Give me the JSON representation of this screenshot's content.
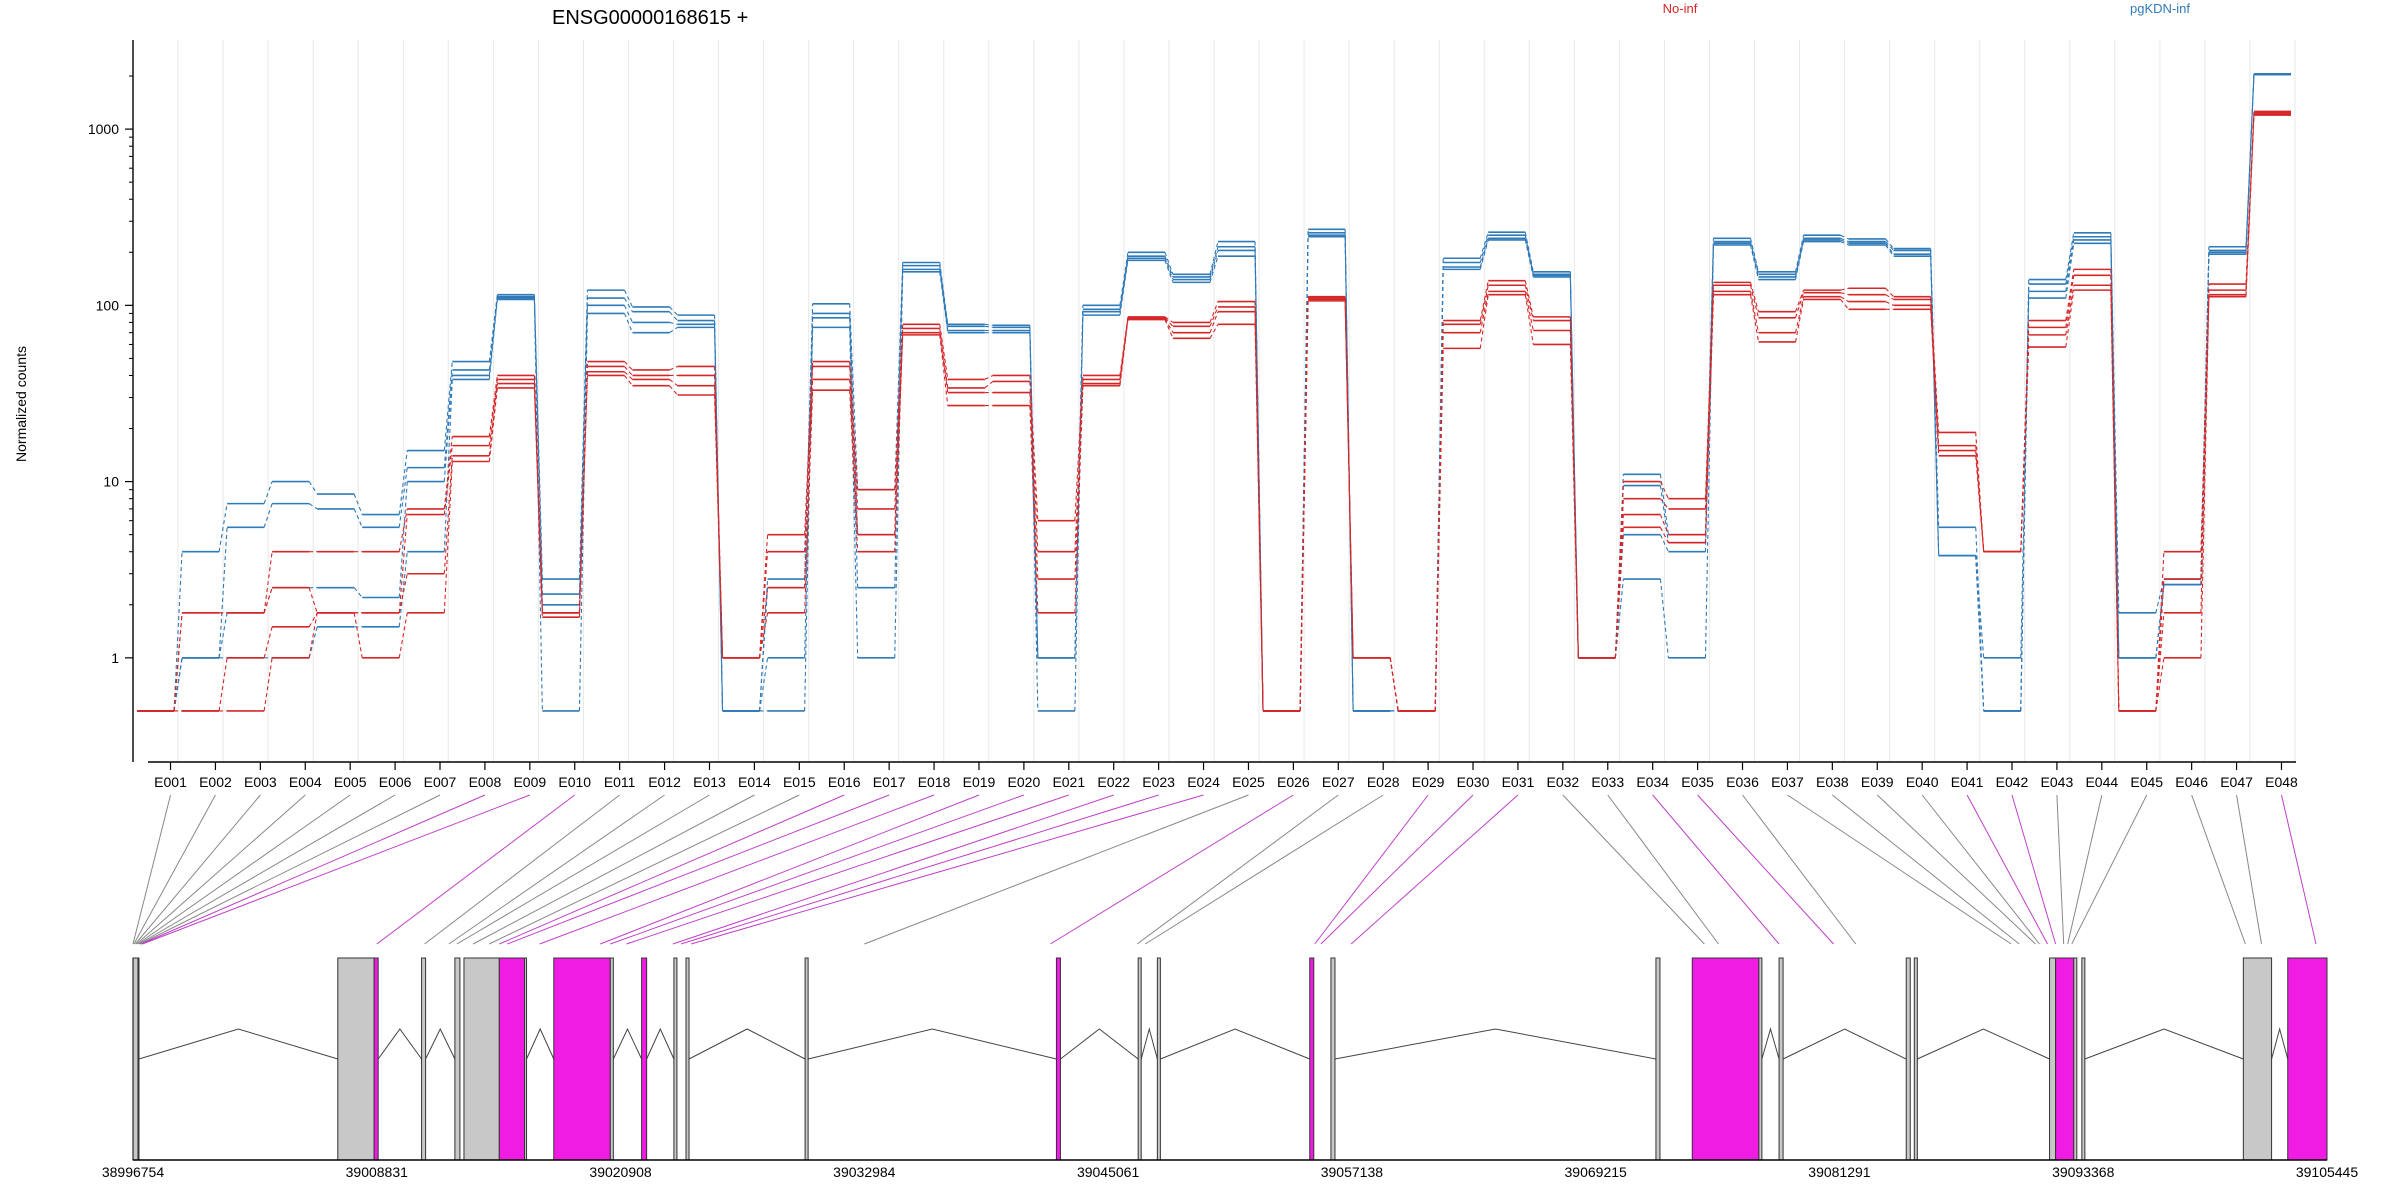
{
  "colors": {
    "no_inf": "#d62728",
    "pgkdn_inf": "#2f7ab8",
    "exon_spliced": "#f01ce4",
    "exon_constitutive": "#c8c8c8",
    "connector_gray": "#888888",
    "connector_magenta": "#c040c8"
  },
  "chart_data": {
    "type": "line",
    "title": "ENSG00000168615 +",
    "ylabel": "Normalized counts",
    "xlabel": "",
    "y_scale": "log",
    "ylim": [
      0.3,
      3000
    ],
    "y_ticks": [
      "1",
      "10",
      "100",
      "1000"
    ],
    "grid": "vertical-minor",
    "legend_placement": "top-right",
    "categories": [
      "E001",
      "E002",
      "E003",
      "E004",
      "E005",
      "E006",
      "E007",
      "E008",
      "E009",
      "E010",
      "E011",
      "E012",
      "E013",
      "E014",
      "E015",
      "E016",
      "E017",
      "E018",
      "E019",
      "E020",
      "E021",
      "E022",
      "E023",
      "E024",
      "E025",
      "E026",
      "E027",
      "E028",
      "E029",
      "E030",
      "E031",
      "E032",
      "E033",
      "E034",
      "E035",
      "E036",
      "E037",
      "E038",
      "E039",
      "E040",
      "E041",
      "E042",
      "E043",
      "E044",
      "E045",
      "E046",
      "E047",
      "E048"
    ],
    "series": [
      {
        "name": "pgKDN-inf",
        "values": [
          0.5,
          4,
          7.5,
          10,
          8.5,
          6.5,
          15,
          48,
          115,
          2.8,
          122,
          98,
          88,
          0.5,
          2.8,
          102,
          9,
          175,
          78,
          77,
          1,
          100,
          200,
          150,
          230,
          0.5,
          270,
          0.5,
          0.5,
          185,
          260,
          155,
          1,
          11,
          5,
          240,
          155,
          250,
          238,
          210,
          5.5,
          0.5,
          140,
          258,
          1.8,
          2.8,
          215,
          2050
        ]
      },
      {
        "name": "pgKDN-inf",
        "values": [
          0.5,
          1,
          5.5,
          7.5,
          7,
          5.5,
          12,
          43,
          112,
          2.3,
          110,
          92,
          82,
          0.5,
          2.5,
          90,
          5,
          168,
          76,
          75,
          1,
          95,
          190,
          145,
          215,
          0.5,
          258,
          0.5,
          0.5,
          175,
          250,
          150,
          1,
          9.5,
          4.5,
          230,
          150,
          240,
          230,
          205,
          3.8,
          0.5,
          132,
          245,
          1,
          2.6,
          205,
          2040
        ]
      },
      {
        "name": "pgKDN-inf",
        "values": [
          0.5,
          1,
          1.8,
          2.5,
          2.5,
          2.2,
          10,
          40,
          110,
          2,
          100,
          80,
          78,
          0.5,
          1,
          85,
          2.5,
          160,
          72,
          72,
          1,
          92,
          185,
          140,
          205,
          0.5,
          250,
          0.5,
          0.5,
          165,
          240,
          148,
          1,
          5,
          4,
          225,
          145,
          235,
          225,
          195,
          3.8,
          1,
          120,
          235,
          1,
          2.6,
          200,
          2060
        ]
      },
      {
        "name": "pgKDN-inf",
        "values": [
          0.5,
          1,
          1,
          1,
          1.5,
          1.5,
          4,
          38,
          108,
          0.5,
          90,
          70,
          75,
          0.5,
          0.5,
          75,
          1,
          155,
          70,
          70,
          0.5,
          88,
          180,
          135,
          190,
          0.5,
          245,
          0.5,
          0.5,
          160,
          235,
          145,
          1,
          2.8,
          1,
          220,
          140,
          230,
          220,
          190,
          3.8,
          0.5,
          110,
          225,
          1,
          2.6,
          195,
          2040
        ]
      },
      {
        "name": "No-inf",
        "values": [
          0.5,
          1.8,
          1.8,
          4,
          4,
          4,
          7,
          18,
          40,
          1.8,
          48,
          43,
          45,
          1,
          5,
          48,
          9,
          78,
          38,
          40,
          6,
          40,
          86,
          80,
          105,
          0.5,
          112,
          1,
          0.5,
          82,
          138,
          86,
          1,
          10,
          8,
          135,
          92,
          122,
          125,
          112,
          19,
          4,
          82,
          160,
          0.5,
          4,
          132,
          1260
        ]
      },
      {
        "name": "No-inf",
        "values": [
          0.5,
          1.8,
          1.8,
          2.5,
          1.8,
          1.8,
          6.5,
          16,
          38,
          1.8,
          45,
          40,
          40,
          1,
          4,
          45,
          7,
          74,
          34,
          37,
          4,
          38,
          85,
          76,
          98,
          0.5,
          110,
          1,
          0.5,
          78,
          130,
          82,
          1,
          8,
          7,
          130,
          85,
          118,
          115,
          108,
          16,
          4,
          75,
          148,
          0.5,
          2.8,
          122,
          1240
        ]
      },
      {
        "name": "No-inf",
        "values": [
          0.5,
          0.5,
          1,
          1.5,
          1.8,
          1.8,
          3,
          14,
          36,
          1.8,
          42,
          38,
          35,
          1,
          2.5,
          38,
          5,
          70,
          32,
          32,
          2.8,
          36,
          84,
          70,
          92,
          0.5,
          108,
          1,
          0.5,
          70,
          120,
          72,
          1,
          6.5,
          5,
          120,
          70,
          112,
          105,
          100,
          15,
          4,
          68,
          130,
          0.5,
          1.8,
          115,
          1220
        ]
      },
      {
        "name": "No-inf",
        "values": [
          0.5,
          0.5,
          0.5,
          1,
          1.8,
          1,
          1.8,
          13,
          34,
          1.7,
          40,
          35,
          31,
          1,
          1.8,
          33,
          4,
          68,
          27,
          27,
          1.8,
          35,
          83,
          65,
          78,
          0.5,
          106,
          1,
          0.5,
          57,
          115,
          60,
          1,
          5.5,
          4.5,
          115,
          62,
          108,
          95,
          95,
          14,
          4,
          58,
          122,
          0.5,
          1,
          112,
          1200
        ]
      }
    ],
    "genomic_axis": {
      "min": 38996754,
      "max": 39105445,
      "tick_labels": [
        "38996754",
        "39008831",
        "39020908",
        "39032984",
        "39045061",
        "39057138",
        "39069215",
        "39081291",
        "39093368",
        "39105445"
      ]
    },
    "exon_positions": [
      38996754,
      38996800,
      38996870,
      38996930,
      38996990,
      38997050,
      38997100,
      38997160,
      38997220,
      39008831,
      39011200,
      39012400,
      39012800,
      39013600,
      39014400,
      39014900,
      39015300,
      39016900,
      39019900,
      39020400,
      39021200,
      39023500,
      39023900,
      39024400,
      39032984,
      39042200,
      39046500,
      39046900,
      39055300,
      39055600,
      39057100,
      39074600,
      39075300,
      39078300,
      39081000,
      39082100,
      39089800,
      39090200,
      39091000,
      39091200,
      39091600,
      39092000,
      39092400,
      39092600,
      39092800,
      39101400,
      39102200,
      39104900
    ],
    "exon_types": [
      "constitutive",
      "constitutive",
      "constitutive",
      "constitutive",
      "constitutive",
      "constitutive",
      "constitutive",
      "spliced",
      "spliced",
      "spliced",
      "constitutive",
      "constitutive",
      "constitutive",
      "constitutive",
      "constitutive",
      "spliced",
      "spliced",
      "spliced",
      "spliced",
      "spliced",
      "spliced",
      "spliced",
      "spliced",
      "spliced",
      "constitutive",
      "spliced",
      "constitutive",
      "constitutive",
      "spliced",
      "spliced",
      "spliced",
      "constitutive",
      "constitutive",
      "spliced",
      "spliced",
      "constitutive",
      "constitutive",
      "constitutive",
      "constitutive",
      "constitutive",
      "spliced",
      "spliced",
      "constitutive",
      "constitutive",
      "constitutive",
      "constitutive",
      "constitutive",
      "spliced"
    ],
    "gene_model": [
      {
        "start": 38996754,
        "end": 38997050,
        "type": "spliced"
      },
      {
        "start": 38996754,
        "end": 38997000,
        "type": "constitutive"
      },
      {
        "start": 39006900,
        "end": 39008700,
        "type": "constitutive"
      },
      {
        "start": 39008700,
        "end": 39008900,
        "type": "spliced"
      },
      {
        "start": 39011050,
        "end": 39011250,
        "type": "constitutive"
      },
      {
        "start": 39012700,
        "end": 39012950,
        "type": "constitutive"
      },
      {
        "start": 39013150,
        "end": 39014900,
        "type": "constitutive"
      },
      {
        "start": 39014900,
        "end": 39016150,
        "type": "spliced"
      },
      {
        "start": 39016150,
        "end": 39016250,
        "type": "constitutive"
      },
      {
        "start": 39017600,
        "end": 39020400,
        "type": "spliced"
      },
      {
        "start": 39020400,
        "end": 39020550,
        "type": "constitutive"
      },
      {
        "start": 39021950,
        "end": 39022200,
        "type": "spliced"
      },
      {
        "start": 39023550,
        "end": 39023700,
        "type": "constitutive"
      },
      {
        "start": 39024150,
        "end": 39024300,
        "type": "constitutive"
      },
      {
        "start": 39030050,
        "end": 39030200,
        "type": "constitutive"
      },
      {
        "start": 39042500,
        "end": 39042700,
        "type": "spliced"
      },
      {
        "start": 39046550,
        "end": 39046700,
        "type": "constitutive"
      },
      {
        "start": 39047500,
        "end": 39047650,
        "type": "constitutive"
      },
      {
        "start": 39055050,
        "end": 39055250,
        "type": "spliced"
      },
      {
        "start": 39056100,
        "end": 39056300,
        "type": "constitutive"
      },
      {
        "start": 39072200,
        "end": 39072400,
        "type": "constitutive"
      },
      {
        "start": 39074000,
        "end": 39077300,
        "type": "spliced"
      },
      {
        "start": 39077300,
        "end": 39077450,
        "type": "constitutive"
      },
      {
        "start": 39078300,
        "end": 39078500,
        "type": "constitutive"
      },
      {
        "start": 39084600,
        "end": 39084800,
        "type": "constitutive"
      },
      {
        "start": 39085000,
        "end": 39085150,
        "type": "constitutive"
      },
      {
        "start": 39091700,
        "end": 39092000,
        "type": "constitutive"
      },
      {
        "start": 39092000,
        "end": 39092900,
        "type": "spliced"
      },
      {
        "start": 39092900,
        "end": 39093050,
        "type": "constitutive"
      },
      {
        "start": 39093300,
        "end": 39093450,
        "type": "constitutive"
      },
      {
        "start": 39101300,
        "end": 39102700,
        "type": "constitutive"
      },
      {
        "start": 39103500,
        "end": 39105445,
        "type": "spliced"
      }
    ],
    "introns": [
      [
        38997050,
        39006900
      ],
      [
        39008900,
        39011050
      ],
      [
        39011250,
        39012700
      ],
      [
        39016250,
        39017600
      ],
      [
        39020550,
        39021950
      ],
      [
        39022200,
        39023550
      ],
      [
        39024300,
        39030050
      ],
      [
        39030200,
        39042500
      ],
      [
        39042700,
        39046550
      ],
      [
        39046700,
        39047500
      ],
      [
        39047650,
        39055050
      ],
      [
        39056300,
        39072200
      ],
      [
        39077450,
        39078300
      ],
      [
        39078500,
        39084600
      ],
      [
        39085150,
        39091700
      ],
      [
        39093450,
        39101300
      ],
      [
        39102700,
        39103500
      ]
    ]
  }
}
